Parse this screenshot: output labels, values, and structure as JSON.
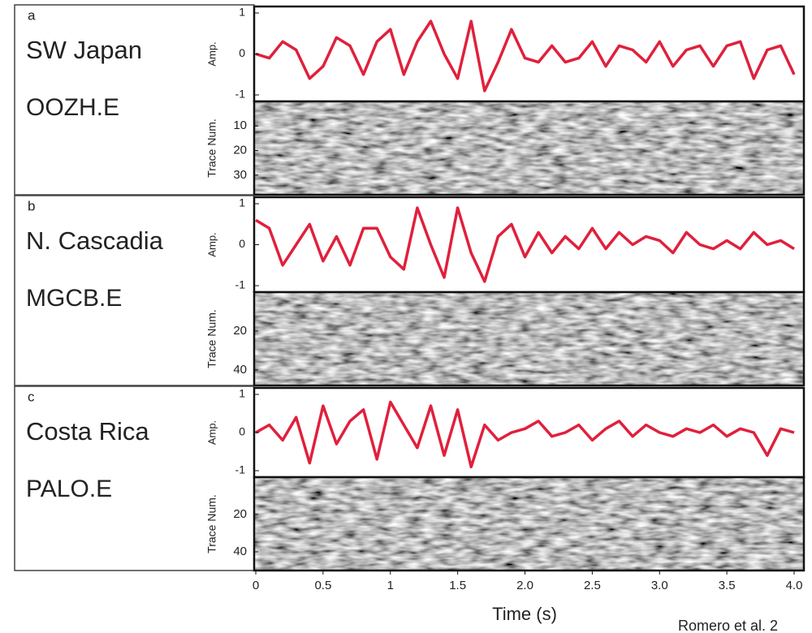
{
  "chart_data": [
    {
      "type": "line",
      "label": "a",
      "region": "SW Japan",
      "station": "OOZH.E",
      "y_label": "Amp.",
      "image_label": "Trace Num.",
      "x": [
        0,
        0.1,
        0.2,
        0.3,
        0.4,
        0.5,
        0.6,
        0.7,
        0.8,
        0.9,
        1,
        1.1,
        1.2,
        1.3,
        1.4,
        1.5,
        1.6,
        1.7,
        1.8,
        1.9,
        2,
        2.1,
        2.2,
        2.3,
        2.4,
        2.5,
        2.6,
        2.7,
        2.8,
        2.9,
        3,
        3.1,
        3.2,
        3.3,
        3.4,
        3.5,
        3.6,
        3.7,
        3.8,
        3.9,
        4
      ],
      "values": [
        0,
        -0.1,
        0.3,
        0.1,
        -0.6,
        -0.3,
        0.4,
        0.2,
        -0.5,
        0.3,
        0.6,
        -0.5,
        0.3,
        0.8,
        0,
        -0.6,
        0.8,
        -0.9,
        -0.2,
        0.6,
        -0.1,
        -0.2,
        0.2,
        -0.2,
        -0.1,
        0.3,
        -0.3,
        0.2,
        0.1,
        -0.2,
        0.3,
        -0.3,
        0.1,
        0.2,
        -0.3,
        0.2,
        0.3,
        -0.6,
        0.1,
        0.2,
        -0.5
      ],
      "color": "#e0203c",
      "xlim": [
        0,
        4
      ],
      "ylim": [
        -1,
        1
      ],
      "yticks": [
        -1,
        0,
        1
      ],
      "image_ylim": [
        0,
        38
      ],
      "image_yticks": [
        10,
        20,
        30
      ]
    },
    {
      "type": "line",
      "label": "b",
      "region": "N. Cascadia",
      "station": "MGCB.E",
      "y_label": "Amp.",
      "image_label": "Trace Num.",
      "x": [
        0,
        0.1,
        0.2,
        0.3,
        0.4,
        0.5,
        0.6,
        0.7,
        0.8,
        0.9,
        1,
        1.1,
        1.2,
        1.3,
        1.4,
        1.5,
        1.6,
        1.7,
        1.8,
        1.9,
        2,
        2.1,
        2.2,
        2.3,
        2.4,
        2.5,
        2.6,
        2.7,
        2.8,
        2.9,
        3,
        3.1,
        3.2,
        3.3,
        3.4,
        3.5,
        3.6,
        3.7,
        3.8,
        3.9,
        4
      ],
      "values": [
        0.6,
        0.4,
        -0.5,
        0,
        0.5,
        -0.4,
        0.2,
        -0.5,
        0.4,
        0.4,
        -0.3,
        -0.6,
        0.9,
        0,
        -0.8,
        0.9,
        -0.2,
        -0.9,
        0.2,
        0.5,
        -0.3,
        0.3,
        -0.2,
        0.2,
        -0.1,
        0.4,
        -0.1,
        0.3,
        0,
        0.2,
        0.1,
        -0.2,
        0.3,
        0,
        -0.1,
        0.1,
        -0.1,
        0.3,
        0,
        0.1,
        -0.1
      ],
      "color": "#e0203c",
      "xlim": [
        0,
        4
      ],
      "ylim": [
        -1,
        1
      ],
      "yticks": [
        -1,
        0,
        1
      ],
      "image_ylim": [
        0,
        48
      ],
      "image_yticks": [
        20,
        40
      ]
    },
    {
      "type": "line",
      "label": "c",
      "region": "Costa Rica",
      "station": "PALO.E",
      "y_label": "Amp.",
      "image_label": "Trace Num.",
      "x": [
        0,
        0.1,
        0.2,
        0.3,
        0.4,
        0.5,
        0.6,
        0.7,
        0.8,
        0.9,
        1,
        1.1,
        1.2,
        1.3,
        1.4,
        1.5,
        1.6,
        1.7,
        1.8,
        1.9,
        2,
        2.1,
        2.2,
        2.3,
        2.4,
        2.5,
        2.6,
        2.7,
        2.8,
        2.9,
        3,
        3.1,
        3.2,
        3.3,
        3.4,
        3.5,
        3.6,
        3.7,
        3.8,
        3.9,
        4
      ],
      "values": [
        0,
        0.2,
        -0.2,
        0.4,
        -0.8,
        0.7,
        -0.3,
        0.3,
        0.6,
        -0.7,
        0.8,
        0.2,
        -0.4,
        0.7,
        -0.6,
        0.6,
        -0.9,
        0.2,
        -0.2,
        0,
        0.1,
        0.3,
        -0.1,
        0,
        0.2,
        -0.2,
        0.1,
        0.3,
        -0.1,
        0.2,
        0,
        -0.1,
        0.1,
        0,
        0.2,
        -0.1,
        0.1,
        0,
        -0.6,
        0.1,
        0
      ],
      "color": "#e0203c",
      "xlim": [
        0,
        4
      ],
      "ylim": [
        -1,
        1
      ],
      "yticks": [
        -1,
        0,
        1
      ],
      "image_ylim": [
        0,
        50
      ],
      "image_yticks": [
        20,
        40
      ]
    }
  ],
  "time_axis": {
    "label": "Time (s)",
    "xlim": [
      0,
      4
    ],
    "xticks": [
      0,
      0.5,
      1,
      1.5,
      {
        "value": 2,
        "label": "2.0"
      },
      2.5,
      {
        "value": 3,
        "label": "3.0"
      },
      3.5,
      {
        "value": 4,
        "label": "4.0"
      }
    ]
  },
  "credit": "Romero et al. 2"
}
